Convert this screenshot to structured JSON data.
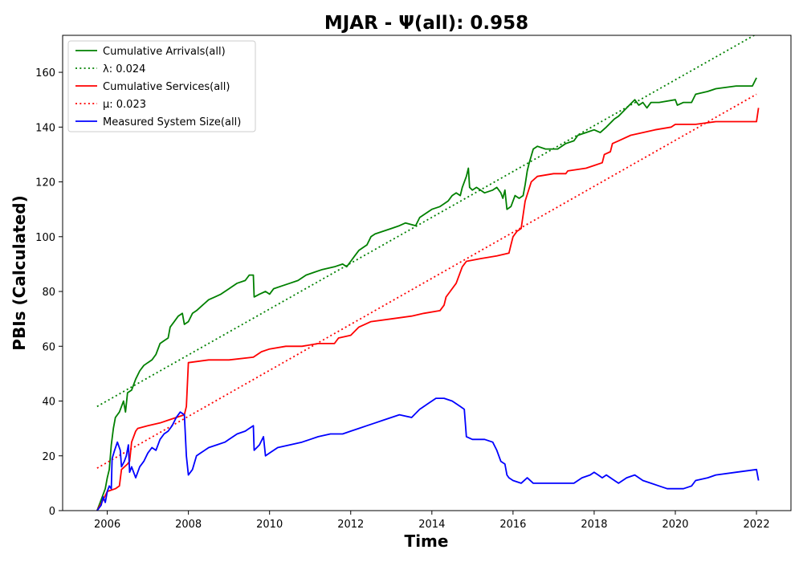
{
  "chart_data": {
    "type": "line",
    "title": "MJAR -  Ψ(all): 0.958",
    "xlabel": "Time",
    "ylabel": "PBIs (Calculated)",
    "xlim": [
      2004.9,
      2022.85
    ],
    "ylim": [
      0,
      173.5
    ],
    "xticks": [
      2006,
      2008,
      2010,
      2012,
      2014,
      2016,
      2018,
      2020,
      2022
    ],
    "yticks": [
      0,
      20,
      40,
      60,
      80,
      100,
      120,
      140,
      160
    ],
    "grid": false,
    "legend_position": "top-left",
    "series": [
      {
        "name": "Cumulative Arrivals(all)",
        "color": "#008000",
        "style": "solid",
        "points": [
          [
            2005.75,
            0
          ],
          [
            2005.85,
            4
          ],
          [
            2005.95,
            8
          ],
          [
            2006.0,
            12
          ],
          [
            2006.05,
            15
          ],
          [
            2006.1,
            24
          ],
          [
            2006.15,
            30
          ],
          [
            2006.2,
            34
          ],
          [
            2006.3,
            36
          ],
          [
            2006.35,
            38
          ],
          [
            2006.4,
            40
          ],
          [
            2006.45,
            36
          ],
          [
            2006.5,
            43
          ],
          [
            2006.6,
            44
          ],
          [
            2006.7,
            48
          ],
          [
            2006.8,
            51
          ],
          [
            2006.9,
            53
          ],
          [
            2007.0,
            54
          ],
          [
            2007.1,
            55
          ],
          [
            2007.2,
            57
          ],
          [
            2007.3,
            61
          ],
          [
            2007.4,
            62
          ],
          [
            2007.5,
            63
          ],
          [
            2007.55,
            67
          ],
          [
            2007.65,
            69
          ],
          [
            2007.75,
            71
          ],
          [
            2007.85,
            72
          ],
          [
            2007.9,
            68
          ],
          [
            2008.0,
            69
          ],
          [
            2008.1,
            72
          ],
          [
            2008.2,
            73
          ],
          [
            2008.35,
            75
          ],
          [
            2008.5,
            77
          ],
          [
            2008.65,
            78
          ],
          [
            2008.8,
            79
          ],
          [
            2009.0,
            81
          ],
          [
            2009.2,
            83
          ],
          [
            2009.4,
            84
          ],
          [
            2009.5,
            86
          ],
          [
            2009.6,
            86
          ],
          [
            2009.62,
            78
          ],
          [
            2009.75,
            79
          ],
          [
            2009.9,
            80
          ],
          [
            2010.0,
            79
          ],
          [
            2010.1,
            81
          ],
          [
            2010.3,
            82
          ],
          [
            2010.5,
            83
          ],
          [
            2010.7,
            84
          ],
          [
            2010.9,
            86
          ],
          [
            2011.1,
            87
          ],
          [
            2011.3,
            88
          ],
          [
            2011.6,
            89
          ],
          [
            2011.8,
            90
          ],
          [
            2011.9,
            89
          ],
          [
            2012.0,
            91
          ],
          [
            2012.1,
            93
          ],
          [
            2012.2,
            95
          ],
          [
            2012.4,
            97
          ],
          [
            2012.5,
            100
          ],
          [
            2012.6,
            101
          ],
          [
            2012.8,
            102
          ],
          [
            2013.0,
            103
          ],
          [
            2013.2,
            104
          ],
          [
            2013.35,
            105
          ],
          [
            2013.6,
            104
          ],
          [
            2013.7,
            107
          ],
          [
            2013.8,
            108
          ],
          [
            2014.0,
            110
          ],
          [
            2014.2,
            111
          ],
          [
            2014.4,
            113
          ],
          [
            2014.5,
            115
          ],
          [
            2014.6,
            116
          ],
          [
            2014.7,
            115
          ],
          [
            2014.75,
            118
          ],
          [
            2014.85,
            122
          ],
          [
            2014.9,
            125
          ],
          [
            2014.93,
            118
          ],
          [
            2015.0,
            117
          ],
          [
            2015.1,
            118
          ],
          [
            2015.3,
            116
          ],
          [
            2015.5,
            117
          ],
          [
            2015.6,
            118
          ],
          [
            2015.7,
            116
          ],
          [
            2015.75,
            114
          ],
          [
            2015.8,
            117
          ],
          [
            2015.85,
            110
          ],
          [
            2015.95,
            111
          ],
          [
            2016.05,
            115
          ],
          [
            2016.15,
            114
          ],
          [
            2016.25,
            115
          ],
          [
            2016.3,
            119
          ],
          [
            2016.35,
            124
          ],
          [
            2016.4,
            127
          ],
          [
            2016.5,
            132
          ],
          [
            2016.6,
            133
          ],
          [
            2016.8,
            132
          ],
          [
            2017.1,
            132
          ],
          [
            2017.3,
            134
          ],
          [
            2017.5,
            135
          ],
          [
            2017.6,
            137
          ],
          [
            2017.8,
            138
          ],
          [
            2018.0,
            139
          ],
          [
            2018.15,
            138
          ],
          [
            2018.3,
            140
          ],
          [
            2018.5,
            143
          ],
          [
            2018.6,
            144
          ],
          [
            2018.8,
            147
          ],
          [
            2019.0,
            150
          ],
          [
            2019.1,
            148
          ],
          [
            2019.2,
            149
          ],
          [
            2019.3,
            147
          ],
          [
            2019.4,
            149
          ],
          [
            2019.6,
            149
          ],
          [
            2020.0,
            150
          ],
          [
            2020.05,
            148
          ],
          [
            2020.2,
            149
          ],
          [
            2020.4,
            149
          ],
          [
            2020.5,
            152
          ],
          [
            2020.8,
            153
          ],
          [
            2021.0,
            154
          ],
          [
            2021.5,
            155
          ],
          [
            2021.9,
            155
          ],
          [
            2022.0,
            158
          ]
        ]
      },
      {
        "name": "λ: 0.024",
        "color": "#008000",
        "style": "dotted",
        "points": [
          [
            2005.75,
            38
          ],
          [
            2022.0,
            174
          ]
        ]
      },
      {
        "name": "Cumulative Services(all)",
        "color": "#ff0000",
        "style": "solid",
        "points": [
          [
            2005.75,
            0
          ],
          [
            2005.9,
            4
          ],
          [
            2006.0,
            7
          ],
          [
            2006.2,
            8
          ],
          [
            2006.3,
            9
          ],
          [
            2006.35,
            15
          ],
          [
            2006.5,
            17
          ],
          [
            2006.55,
            18
          ],
          [
            2006.6,
            25
          ],
          [
            2006.7,
            29
          ],
          [
            2006.75,
            30
          ],
          [
            2007.0,
            31
          ],
          [
            2007.3,
            32
          ],
          [
            2007.5,
            33
          ],
          [
            2007.7,
            34
          ],
          [
            2007.9,
            35
          ],
          [
            2007.95,
            38
          ],
          [
            2008.0,
            54
          ],
          [
            2008.5,
            55
          ],
          [
            2009.0,
            55
          ],
          [
            2009.6,
            56
          ],
          [
            2009.8,
            58
          ],
          [
            2010.0,
            59
          ],
          [
            2010.4,
            60
          ],
          [
            2010.8,
            60
          ],
          [
            2011.2,
            61
          ],
          [
            2011.6,
            61
          ],
          [
            2011.7,
            63
          ],
          [
            2012.0,
            64
          ],
          [
            2012.2,
            67
          ],
          [
            2012.5,
            69
          ],
          [
            2013.0,
            70
          ],
          [
            2013.5,
            71
          ],
          [
            2013.8,
            72
          ],
          [
            2014.2,
            73
          ],
          [
            2014.3,
            75
          ],
          [
            2014.35,
            78
          ],
          [
            2014.45,
            80
          ],
          [
            2014.6,
            83
          ],
          [
            2014.75,
            89
          ],
          [
            2014.85,
            91
          ],
          [
            2015.2,
            92
          ],
          [
            2015.6,
            93
          ],
          [
            2015.9,
            94
          ],
          [
            2015.95,
            97
          ],
          [
            2016.0,
            100
          ],
          [
            2016.1,
            102
          ],
          [
            2016.2,
            103
          ],
          [
            2016.25,
            108
          ],
          [
            2016.3,
            113
          ],
          [
            2016.45,
            120
          ],
          [
            2016.6,
            122
          ],
          [
            2017.0,
            123
          ],
          [
            2017.3,
            123
          ],
          [
            2017.35,
            124
          ],
          [
            2017.8,
            125
          ],
          [
            2018.0,
            126
          ],
          [
            2018.2,
            127
          ],
          [
            2018.25,
            130
          ],
          [
            2018.4,
            131
          ],
          [
            2018.45,
            134
          ],
          [
            2018.6,
            135
          ],
          [
            2018.9,
            137
          ],
          [
            2019.2,
            138
          ],
          [
            2019.5,
            139
          ],
          [
            2019.9,
            140
          ],
          [
            2020.0,
            141
          ],
          [
            2020.5,
            141
          ],
          [
            2021.0,
            142
          ],
          [
            2021.5,
            142
          ],
          [
            2022.0,
            142
          ],
          [
            2022.05,
            147
          ]
        ]
      },
      {
        "name": "μ: 0.023",
        "color": "#ff0000",
        "style": "dotted",
        "points": [
          [
            2005.75,
            15.5
          ],
          [
            2022.0,
            152
          ]
        ]
      },
      {
        "name": "Measured System Size(all)",
        "color": "#0000ff",
        "style": "solid",
        "points": [
          [
            2005.75,
            0
          ],
          [
            2005.85,
            2
          ],
          [
            2005.9,
            5
          ],
          [
            2005.95,
            3
          ],
          [
            2006.0,
            7
          ],
          [
            2006.05,
            9
          ],
          [
            2006.1,
            8
          ],
          [
            2006.12,
            19
          ],
          [
            2006.18,
            22
          ],
          [
            2006.25,
            25
          ],
          [
            2006.32,
            22
          ],
          [
            2006.35,
            16
          ],
          [
            2006.42,
            18
          ],
          [
            2006.47,
            20
          ],
          [
            2006.52,
            24
          ],
          [
            2006.55,
            14
          ],
          [
            2006.6,
            16
          ],
          [
            2006.65,
            14
          ],
          [
            2006.7,
            12
          ],
          [
            2006.8,
            16
          ],
          [
            2006.9,
            18
          ],
          [
            2007.0,
            21
          ],
          [
            2007.1,
            23
          ],
          [
            2007.2,
            22
          ],
          [
            2007.3,
            26
          ],
          [
            2007.4,
            28
          ],
          [
            2007.5,
            29
          ],
          [
            2007.6,
            31
          ],
          [
            2007.7,
            34
          ],
          [
            2007.8,
            36
          ],
          [
            2007.9,
            35
          ],
          [
            2007.95,
            20
          ],
          [
            2008.0,
            13
          ],
          [
            2008.1,
            15
          ],
          [
            2008.2,
            20
          ],
          [
            2008.3,
            21
          ],
          [
            2008.5,
            23
          ],
          [
            2008.7,
            24
          ],
          [
            2008.9,
            25
          ],
          [
            2009.0,
            26
          ],
          [
            2009.2,
            28
          ],
          [
            2009.4,
            29
          ],
          [
            2009.5,
            30
          ],
          [
            2009.6,
            31
          ],
          [
            2009.62,
            22
          ],
          [
            2009.75,
            24
          ],
          [
            2009.85,
            27
          ],
          [
            2009.9,
            20
          ],
          [
            2010.0,
            21
          ],
          [
            2010.2,
            23
          ],
          [
            2010.5,
            24
          ],
          [
            2010.8,
            25
          ],
          [
            2011.0,
            26
          ],
          [
            2011.2,
            27
          ],
          [
            2011.5,
            28
          ],
          [
            2011.8,
            28
          ],
          [
            2012.0,
            29
          ],
          [
            2012.2,
            30
          ],
          [
            2012.4,
            31
          ],
          [
            2012.6,
            32
          ],
          [
            2012.8,
            33
          ],
          [
            2013.0,
            34
          ],
          [
            2013.2,
            35
          ],
          [
            2013.5,
            34
          ],
          [
            2013.7,
            37
          ],
          [
            2013.9,
            39
          ],
          [
            2014.1,
            41
          ],
          [
            2014.3,
            41
          ],
          [
            2014.5,
            40
          ],
          [
            2014.7,
            38
          ],
          [
            2014.8,
            37
          ],
          [
            2014.85,
            27
          ],
          [
            2015.0,
            26
          ],
          [
            2015.3,
            26
          ],
          [
            2015.5,
            25
          ],
          [
            2015.6,
            22
          ],
          [
            2015.7,
            18
          ],
          [
            2015.8,
            17
          ],
          [
            2015.85,
            13
          ],
          [
            2015.9,
            12
          ],
          [
            2016.0,
            11
          ],
          [
            2016.2,
            10
          ],
          [
            2016.35,
            12
          ],
          [
            2016.5,
            10
          ],
          [
            2016.8,
            10
          ],
          [
            2017.0,
            10
          ],
          [
            2017.3,
            10
          ],
          [
            2017.5,
            10
          ],
          [
            2017.7,
            12
          ],
          [
            2017.9,
            13
          ],
          [
            2018.0,
            14
          ],
          [
            2018.1,
            13
          ],
          [
            2018.2,
            12
          ],
          [
            2018.3,
            13
          ],
          [
            2018.5,
            11
          ],
          [
            2018.6,
            10
          ],
          [
            2018.8,
            12
          ],
          [
            2019.0,
            13
          ],
          [
            2019.2,
            11
          ],
          [
            2019.4,
            10
          ],
          [
            2019.6,
            9
          ],
          [
            2019.8,
            8
          ],
          [
            2020.0,
            8
          ],
          [
            2020.2,
            8
          ],
          [
            2020.4,
            9
          ],
          [
            2020.5,
            11
          ],
          [
            2020.8,
            12
          ],
          [
            2021.0,
            13
          ],
          [
            2021.5,
            14
          ],
          [
            2022.0,
            15
          ],
          [
            2022.05,
            11
          ]
        ]
      }
    ]
  }
}
